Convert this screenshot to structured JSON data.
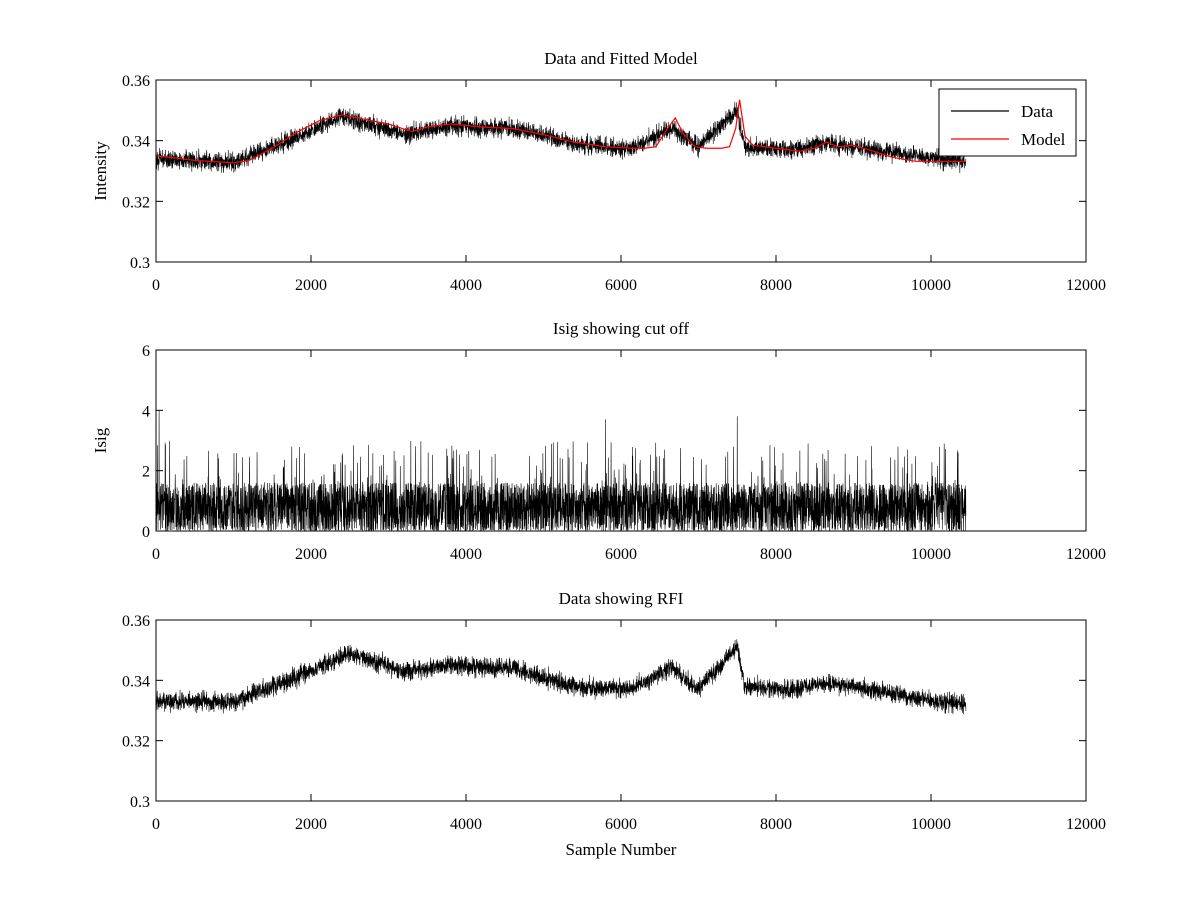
{
  "chart_data": [
    {
      "type": "line",
      "title": "Data and Fitted Model",
      "xlabel": "",
      "ylabel": "Intensity",
      "xlim": [
        0,
        12000
      ],
      "ylim": [
        0.3,
        0.36
      ],
      "xticks": [
        0,
        2000,
        4000,
        6000,
        8000,
        10000,
        12000
      ],
      "yticks": [
        0.3,
        0.32,
        0.34,
        0.36
      ],
      "xtick_labels": [
        "0",
        "2000",
        "4000",
        "6000",
        "8000",
        "10000",
        "12000"
      ],
      "ytick_labels": [
        "0.3",
        "0.32",
        "0.34",
        "0.36"
      ],
      "legend": {
        "position": "top-right",
        "entries": [
          "Data",
          "Model"
        ]
      },
      "series": [
        {
          "name": "Data",
          "color": "#000000",
          "x_range": [
            0,
            10450
          ],
          "n_samples": 10450,
          "trend_x": [
            0,
            1000,
            1800,
            2400,
            3200,
            3800,
            4600,
            5400,
            6100,
            6650,
            7000,
            7500,
            7600,
            8200,
            8650,
            9000,
            9800,
            10450
          ],
          "trend_y": [
            0.334,
            0.333,
            0.341,
            0.348,
            0.342,
            0.345,
            0.344,
            0.339,
            0.337,
            0.344,
            0.338,
            0.35,
            0.338,
            0.337,
            0.339,
            0.338,
            0.335,
            0.333
          ],
          "noise_amplitude": 0.0045
        },
        {
          "name": "Model",
          "color": "#ff0000",
          "x": [
            0,
            500,
            1000,
            1200,
            1500,
            1800,
            2100,
            2400,
            2700,
            3000,
            3300,
            3500,
            3800,
            4200,
            4600,
            5000,
            5400,
            5800,
            6150,
            6300,
            6450,
            6600,
            6700,
            6800,
            6950,
            7100,
            7300,
            7400,
            7480,
            7530,
            7600,
            7700,
            8000,
            8300,
            8500,
            8650,
            8800,
            9000,
            9200,
            9500,
            9800,
            10450
          ],
          "y": [
            0.335,
            0.3335,
            0.3327,
            0.3335,
            0.3375,
            0.3425,
            0.3465,
            0.3485,
            0.347,
            0.3455,
            0.343,
            0.3445,
            0.3455,
            0.3445,
            0.344,
            0.342,
            0.3395,
            0.338,
            0.3375,
            0.3375,
            0.338,
            0.344,
            0.3475,
            0.3425,
            0.338,
            0.3375,
            0.3375,
            0.338,
            0.344,
            0.3535,
            0.3415,
            0.3385,
            0.3375,
            0.3365,
            0.3375,
            0.3395,
            0.338,
            0.3385,
            0.337,
            0.3345,
            0.3332,
            0.3332
          ]
        }
      ]
    },
    {
      "type": "line",
      "title": "Isig showing cut off",
      "xlabel": "",
      "ylabel": "Isig",
      "xlim": [
        0,
        12000
      ],
      "ylim": [
        0,
        6
      ],
      "xticks": [
        0,
        2000,
        4000,
        6000,
        8000,
        10000,
        12000
      ],
      "yticks": [
        0,
        2,
        4,
        6
      ],
      "xtick_labels": [
        "0",
        "2000",
        "4000",
        "6000",
        "8000",
        "10000",
        "12000"
      ],
      "ytick_labels": [
        "0",
        "2",
        "4",
        "6"
      ],
      "series": [
        {
          "color": "#000000",
          "x_range": [
            0,
            10450
          ],
          "n_samples": 10450,
          "typical_max": 1.6,
          "spike_max": 4.0,
          "peak_x": [
            40,
            5800,
            7500
          ],
          "peak_y": [
            4.0,
            3.7,
            3.8
          ]
        }
      ]
    },
    {
      "type": "line",
      "title": "Data showing RFI",
      "xlabel": "Sample Number",
      "ylabel": "",
      "xlim": [
        0,
        12000
      ],
      "ylim": [
        0.3,
        0.36
      ],
      "xticks": [
        0,
        2000,
        4000,
        6000,
        8000,
        10000,
        12000
      ],
      "yticks": [
        0.3,
        0.32,
        0.34,
        0.36
      ],
      "xtick_labels": [
        "0",
        "2000",
        "4000",
        "6000",
        "8000",
        "10000",
        "12000"
      ],
      "ytick_labels": [
        "0.3",
        "0.32",
        "0.34",
        "0.36"
      ],
      "series": [
        {
          "color": "#000000",
          "x_range": [
            0,
            10450
          ],
          "n_samples": 10450,
          "trend_x": [
            0,
            1000,
            1800,
            2500,
            3200,
            3800,
            4600,
            5400,
            6100,
            6650,
            7000,
            7500,
            7600,
            8200,
            8650,
            9000,
            9800,
            10450
          ],
          "trend_y": [
            0.333,
            0.333,
            0.341,
            0.349,
            0.343,
            0.345,
            0.344,
            0.338,
            0.337,
            0.344,
            0.337,
            0.351,
            0.338,
            0.337,
            0.339,
            0.338,
            0.334,
            0.332
          ],
          "noise_amplitude": 0.0045
        }
      ]
    }
  ]
}
